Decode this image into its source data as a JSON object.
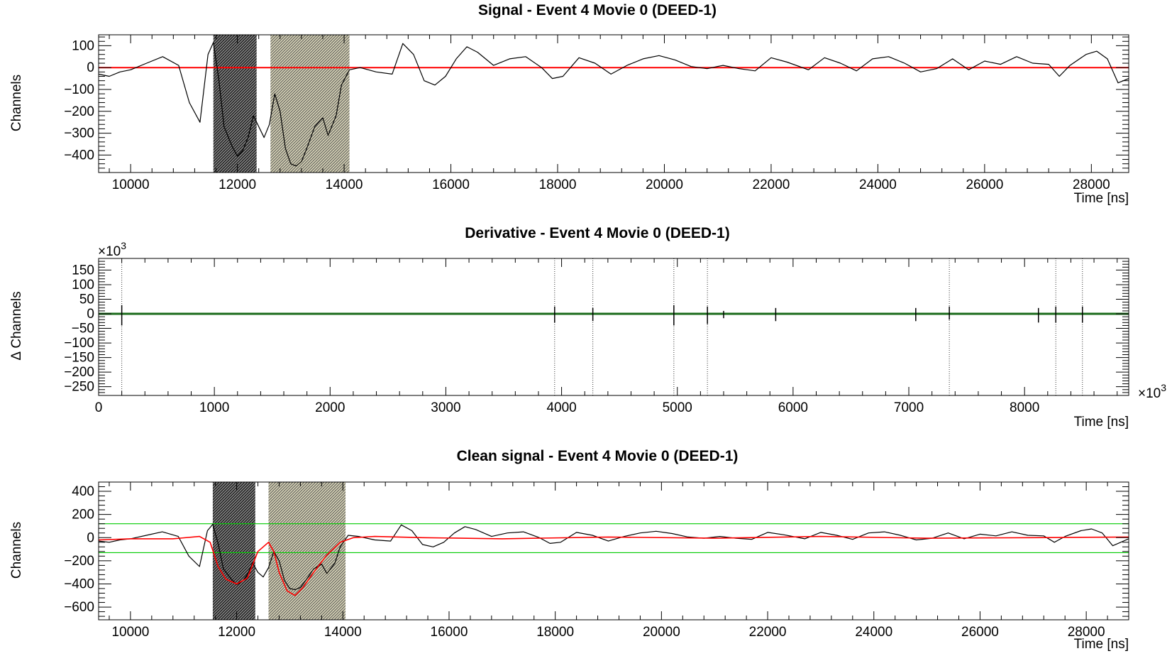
{
  "colors": {
    "signal": "#000000",
    "baseline": "#ff0000",
    "threshold": "#00cc00",
    "derivative": "#1a6b1a",
    "region1": "#505050",
    "region2": "#b8b49a"
  },
  "chart_data": [
    {
      "type": "line",
      "title": "Signal - Event 4 Movie 0 (DEED-1)",
      "xlabel": "Time  [ns]",
      "ylabel": "Channels",
      "xlim": [
        9400,
        28700
      ],
      "ylim": [
        -480,
        150
      ],
      "xticks": [
        10000,
        12000,
        14000,
        16000,
        18000,
        20000,
        22000,
        24000,
        26000,
        28000
      ],
      "yticks": [
        100,
        0,
        -100,
        -200,
        -300,
        -400
      ],
      "shaded_regions": [
        {
          "x0": 11550,
          "x1": 12360,
          "style": "dark"
        },
        {
          "x0": 12620,
          "x1": 14100,
          "style": "olive"
        }
      ],
      "hlines": [
        {
          "y": 0,
          "color": "red"
        }
      ],
      "series": [
        {
          "color": "black",
          "x": [
            9400,
            9600,
            9800,
            10000,
            10300,
            10600,
            10900,
            11100,
            11300,
            11450,
            11550,
            11650,
            11750,
            11900,
            12000,
            12100,
            12200,
            12300,
            12400,
            12500,
            12600,
            12700,
            12800,
            12900,
            13000,
            13100,
            13200,
            13300,
            13450,
            13600,
            13700,
            13850,
            13950,
            14100,
            14300,
            14600,
            14900,
            15100,
            15300,
            15500,
            15700,
            15900,
            16100,
            16300,
            16500,
            16800,
            17100,
            17400,
            17700,
            17900,
            18100,
            18400,
            18700,
            19000,
            19300,
            19600,
            19900,
            20200,
            20500,
            20800,
            21100,
            21400,
            21700,
            22000,
            22300,
            22700,
            23000,
            23300,
            23600,
            23900,
            24200,
            24500,
            24800,
            25100,
            25400,
            25700,
            26000,
            26300,
            26600,
            26900,
            27200,
            27400,
            27600,
            27900,
            28100,
            28300,
            28500,
            28700
          ],
          "y": [
            -30,
            -40,
            -20,
            -10,
            20,
            50,
            10,
            -160,
            -250,
            60,
            115,
            -50,
            -270,
            -360,
            -405,
            -380,
            -320,
            -220,
            -270,
            -320,
            -260,
            -120,
            -200,
            -370,
            -440,
            -450,
            -430,
            -370,
            -270,
            -230,
            -310,
            -220,
            -80,
            -10,
            0,
            -20,
            -30,
            110,
            60,
            -60,
            -80,
            -40,
            40,
            95,
            70,
            10,
            40,
            50,
            0,
            -50,
            -40,
            45,
            20,
            -30,
            10,
            40,
            55,
            35,
            5,
            -5,
            10,
            -5,
            -15,
            45,
            25,
            -10,
            45,
            20,
            -15,
            40,
            50,
            20,
            -20,
            -5,
            40,
            -10,
            30,
            15,
            50,
            20,
            15,
            -40,
            10,
            60,
            75,
            40,
            -70,
            -50
          ]
        }
      ]
    },
    {
      "type": "line",
      "title": "Derivative - Event 4 Movie 0 (DEED-1)",
      "xlabel": "Time  [ns]",
      "ylabel": "Δ Channels",
      "x_multiplier": "×10",
      "y_multiplier": "×10",
      "multiplier_exponent": "3",
      "xlim": [
        0,
        8900
      ],
      "ylim": [
        -280,
        190
      ],
      "xticks": [
        0,
        1000,
        2000,
        3000,
        4000,
        5000,
        6000,
        7000,
        8000
      ],
      "yticks": [
        150,
        100,
        50,
        0,
        -50,
        -100,
        -150,
        -200,
        -250
      ],
      "hlines": [
        {
          "y": 0,
          "color": "green"
        }
      ],
      "vlines": [
        200,
        3940,
        4270,
        4970,
        5260,
        7350,
        8270,
        8500
      ],
      "spikes": [
        {
          "x": 200,
          "y0": -40,
          "y1": 30
        },
        {
          "x": 3940,
          "y0": -30,
          "y1": 25
        },
        {
          "x": 4270,
          "y0": -25,
          "y1": 20
        },
        {
          "x": 4970,
          "y0": -40,
          "y1": 30
        },
        {
          "x": 5260,
          "y0": -35,
          "y1": 25
        },
        {
          "x": 5400,
          "y0": -15,
          "y1": 10
        },
        {
          "x": 5850,
          "y0": -25,
          "y1": 20
        },
        {
          "x": 7060,
          "y0": -25,
          "y1": 20
        },
        {
          "x": 7350,
          "y0": -20,
          "y1": 25
        },
        {
          "x": 8120,
          "y0": -30,
          "y1": 20
        },
        {
          "x": 8270,
          "y0": -30,
          "y1": 25
        },
        {
          "x": 8500,
          "y0": -30,
          "y1": 25
        }
      ]
    },
    {
      "type": "line",
      "title": "Clean signal - Event 4 Movie 0 (DEED-1)",
      "xlabel": "Time  [ns]",
      "ylabel": "Channels",
      "xlim": [
        9400,
        28800
      ],
      "ylim": [
        -710,
        480
      ],
      "xticks": [
        10000,
        12000,
        14000,
        16000,
        18000,
        20000,
        22000,
        24000,
        26000,
        28000
      ],
      "yticks": [
        400,
        200,
        0,
        -200,
        -400,
        -600
      ],
      "shaded_regions": [
        {
          "x0": 11550,
          "x1": 12350,
          "style": "dark"
        },
        {
          "x0": 12600,
          "x1": 14050,
          "style": "olive"
        }
      ],
      "hlines": [
        {
          "y": 120,
          "color": "green"
        },
        {
          "y": -130,
          "color": "green"
        }
      ],
      "series": [
        {
          "color": "black",
          "x": [
            9400,
            9600,
            9800,
            10000,
            10300,
            10600,
            10900,
            11100,
            11300,
            11450,
            11550,
            11650,
            11750,
            11900,
            12000,
            12100,
            12200,
            12300,
            12400,
            12500,
            12600,
            12700,
            12800,
            12900,
            13000,
            13100,
            13200,
            13300,
            13450,
            13600,
            13700,
            13850,
            13950,
            14100,
            14300,
            14600,
            14900,
            15100,
            15300,
            15500,
            15700,
            15900,
            16100,
            16300,
            16500,
            16800,
            17100,
            17400,
            17700,
            17900,
            18100,
            18400,
            18700,
            19000,
            19300,
            19600,
            19900,
            20200,
            20500,
            20800,
            21100,
            21400,
            21700,
            22000,
            22300,
            22700,
            23000,
            23300,
            23600,
            23900,
            24200,
            24500,
            24800,
            25100,
            25400,
            25700,
            26000,
            26300,
            26600,
            26900,
            27200,
            27400,
            27600,
            27900,
            28100,
            28300,
            28500,
            28800
          ],
          "y": [
            -30,
            -40,
            -20,
            -10,
            20,
            50,
            10,
            -160,
            -250,
            60,
            115,
            -50,
            -270,
            -360,
            -405,
            -380,
            -320,
            -220,
            -300,
            -340,
            -260,
            -120,
            -200,
            -370,
            -440,
            -450,
            -430,
            -370,
            -270,
            -230,
            -310,
            -220,
            -80,
            20,
            10,
            -20,
            -30,
            110,
            60,
            -60,
            -80,
            -40,
            40,
            95,
            70,
            10,
            40,
            50,
            0,
            -50,
            -40,
            45,
            20,
            -30,
            10,
            40,
            55,
            35,
            5,
            -5,
            10,
            -5,
            -15,
            45,
            25,
            -10,
            45,
            20,
            -15,
            40,
            50,
            20,
            -20,
            -5,
            40,
            -10,
            30,
            15,
            50,
            20,
            15,
            -40,
            10,
            60,
            75,
            40,
            -70,
            -10
          ]
        },
        {
          "color": "red",
          "x": [
            9400,
            10000,
            10800,
            11300,
            11500,
            11650,
            11800,
            12000,
            12200,
            12400,
            12600,
            12700,
            12800,
            12950,
            13100,
            13250,
            13450,
            13700,
            13950,
            14200,
            14600,
            15500,
            17000,
            19000,
            21000,
            23000,
            25000,
            27000,
            28800
          ],
          "y": [
            -20,
            -10,
            -10,
            10,
            -40,
            -250,
            -360,
            -400,
            -350,
            -120,
            -40,
            -120,
            -300,
            -460,
            -500,
            -430,
            -300,
            -150,
            -40,
            0,
            10,
            0,
            -10,
            5,
            -5,
            10,
            -5,
            0,
            5
          ]
        }
      ]
    }
  ]
}
